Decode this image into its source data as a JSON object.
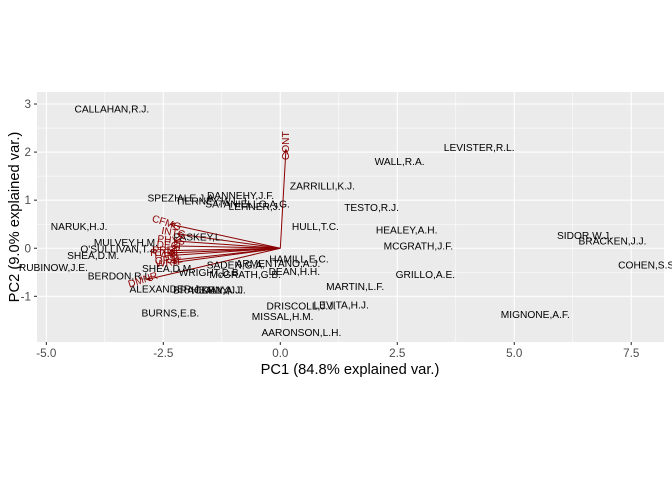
{
  "chart_data": {
    "type": "scatter",
    "subtype": "pca-biplot",
    "xlabel": "PC1 (84.8% explained var.)",
    "ylabel": "PC2 (9.0% explained var.)",
    "xlim": [
      -5.2,
      8.2
    ],
    "ylim": [
      -1.95,
      3.25
    ],
    "xticks": [
      -5.0,
      -2.5,
      0.0,
      2.5,
      5.0,
      7.5
    ],
    "xtick_labels": [
      "-5.0",
      "-2.5",
      "0.0",
      "2.5",
      "5.0",
      "7.5"
    ],
    "yticks": [
      -1,
      0,
      1,
      2,
      3
    ],
    "ytick_labels": [
      "-1",
      "0",
      "1",
      "2",
      "3"
    ],
    "grid": true,
    "legend": "none",
    "colors": {
      "panel": "#ebebeb",
      "grid": "#ffffff",
      "arrows": "#8b0000",
      "labels": "#000000"
    },
    "points": [
      {
        "label": "CALLAHAN,R.J.",
        "x": -3.6,
        "y": 2.9
      },
      {
        "label": "LEVISTER,R.L.",
        "x": 4.25,
        "y": 2.1
      },
      {
        "label": "WALL,R.A.",
        "x": 2.55,
        "y": 1.8
      },
      {
        "label": "ZARRILLI,K.J.",
        "x": 0.9,
        "y": 1.3
      },
      {
        "label": "DANNEHY,J.F.",
        "x": -0.85,
        "y": 1.1
      },
      {
        "label": "SPEZIALE,J.A.",
        "x": -2.1,
        "y": 1.05
      },
      {
        "label": "TIERNEY,W.L.J.",
        "x": -1.45,
        "y": 0.98
      },
      {
        "label": "SATANIELLO,A.G.",
        "x": -0.7,
        "y": 0.92
      },
      {
        "label": "LEHNER,J.",
        "x": -0.55,
        "y": 0.87
      },
      {
        "label": "TESTO,R.J.",
        "x": 1.95,
        "y": 0.85
      },
      {
        "label": "HULL,T.C.",
        "x": 0.75,
        "y": 0.45
      },
      {
        "label": "NARUK,H.J.",
        "x": -4.3,
        "y": 0.45
      },
      {
        "label": "HEALEY,A.H.",
        "x": 2.7,
        "y": 0.38
      },
      {
        "label": "SIDOR,W.J.",
        "x": 6.5,
        "y": 0.27
      },
      {
        "label": "BRACKEN,J.J.",
        "x": 7.1,
        "y": 0.15
      },
      {
        "label": "MULVEY,H.M.",
        "x": -3.3,
        "y": 0.12
      },
      {
        "label": "MCGRATH,J.F.",
        "x": 2.95,
        "y": 0.05
      },
      {
        "label": "O'SULLIVAN,T.J.",
        "x": -3.45,
        "y": -0.02
      },
      {
        "label": "SHEA,D.M.",
        "x": -4.0,
        "y": -0.15
      },
      {
        "label": "HAMILL,E.C.",
        "x": 0.4,
        "y": -0.22
      },
      {
        "label": "ARMENTANO,A.J.",
        "x": -0.05,
        "y": -0.32
      },
      {
        "label": "SADEN,G.A.",
        "x": -0.95,
        "y": -0.35
      },
      {
        "label": "COHEN,S.S.",
        "x": 7.85,
        "y": -0.35
      },
      {
        "label": "DEAN,H.H.",
        "x": 0.3,
        "y": -0.48
      },
      {
        "label": "SHEA,D.M.",
        "x": -2.4,
        "y": -0.42
      },
      {
        "label": "WRIGHT,D.B.",
        "x": -1.5,
        "y": -0.5
      },
      {
        "label": "McGRATH,G.B.",
        "x": -0.75,
        "y": -0.55
      },
      {
        "label": "RUBINOW,J.E.",
        "x": -4.85,
        "y": -0.4
      },
      {
        "label": "BERDON,R.I.",
        "x": -3.45,
        "y": -0.58
      },
      {
        "label": "GRILLO,A.E.",
        "x": 3.1,
        "y": -0.55
      },
      {
        "label": "MARTIN,L.F.",
        "x": 1.6,
        "y": -0.8
      },
      {
        "label": "ALEXANDER,J.",
        "x": -2.45,
        "y": -0.85
      },
      {
        "label": "BRACKEN,J.",
        "x": -1.65,
        "y": -0.87
      },
      {
        "label": "BURNS,E.B.",
        "x": -2.35,
        "y": -1.35
      },
      {
        "label": "DALY,J.J.",
        "x": -1.2,
        "y": -0.87
      },
      {
        "label": "HEALY,A.J.",
        "x": -1.35,
        "y": -0.87
      },
      {
        "label": "PASKEY,L.",
        "x": -1.75,
        "y": 0.23
      },
      {
        "label": "DRISCOLL,J.J.",
        "x": 0.45,
        "y": -1.2
      },
      {
        "label": "LEVITA,H.J.",
        "x": 1.3,
        "y": -1.18
      },
      {
        "label": "MISSAL,H.M.",
        "x": 0.05,
        "y": -1.42
      },
      {
        "label": "MIGNONE,A.F.",
        "x": 5.45,
        "y": -1.38
      },
      {
        "label": "AARONSON,L.H.",
        "x": 0.45,
        "y": -1.75
      }
    ],
    "loadings": [
      {
        "label": "CONT",
        "x": 0.12,
        "y": 2.05,
        "angle": -90
      },
      {
        "label": "CFMG",
        "x": -2.35,
        "y": 0.5,
        "angle": 18
      },
      {
        "label": "INTG",
        "x": -2.2,
        "y": 0.3,
        "angle": 10
      },
      {
        "label": "PHYS",
        "x": -2.25,
        "y": 0.15,
        "angle": 6
      },
      {
        "label": "DECI",
        "x": -2.3,
        "y": 0.05,
        "angle": 4
      },
      {
        "label": "PREP",
        "x": -2.35,
        "y": -0.05,
        "angle": 0
      },
      {
        "label": "FAMI",
        "x": -2.35,
        "y": -0.15,
        "angle": 0
      },
      {
        "label": "ORAL",
        "x": -2.3,
        "y": -0.25,
        "angle": -4
      },
      {
        "label": "WRIT",
        "x": -2.3,
        "y": -0.3,
        "angle": -6
      },
      {
        "label": "RTEN",
        "x": -2.4,
        "y": -0.1,
        "angle": 0
      },
      {
        "label": "DMNR",
        "x": -2.85,
        "y": -0.65,
        "angle": -18
      }
    ]
  }
}
